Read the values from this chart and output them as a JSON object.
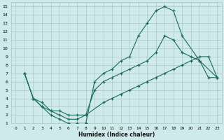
{
  "xlabel": "Humidex (Indice chaleur)",
  "bg_color": "#ceeaea",
  "grid_color": "#aac8c8",
  "line_color": "#1a6b5a",
  "xlim": [
    -0.5,
    23.5
  ],
  "ylim": [
    1,
    15.5
  ],
  "xticks": [
    0,
    1,
    2,
    3,
    4,
    5,
    6,
    7,
    8,
    9,
    10,
    11,
    12,
    13,
    14,
    15,
    16,
    17,
    18,
    19,
    20,
    21,
    22,
    23
  ],
  "yticks": [
    1,
    2,
    3,
    4,
    5,
    6,
    7,
    8,
    9,
    10,
    11,
    12,
    13,
    14,
    15
  ],
  "line1_x": [
    1,
    2,
    3,
    4,
    5,
    6,
    7,
    8,
    9,
    10,
    11,
    12,
    13,
    14,
    15,
    16,
    17,
    18,
    19,
    21,
    22,
    23
  ],
  "line1_y": [
    7,
    4,
    3,
    2,
    1.5,
    1,
    1,
    1,
    6,
    7,
    7.5,
    8.5,
    9,
    11.5,
    13,
    14.5,
    15,
    14.5,
    11.5,
    8.5,
    6.5,
    6.5
  ],
  "line2_x": [
    1,
    2,
    3,
    4,
    5,
    6,
    7,
    8,
    9,
    10,
    11,
    12,
    13,
    14,
    15,
    16,
    17,
    18,
    19,
    20,
    21,
    23
  ],
  "line2_y": [
    7,
    4,
    3,
    2.5,
    2,
    1.5,
    1.5,
    2,
    5,
    6,
    6.5,
    7,
    7.5,
    8,
    8.5,
    9.5,
    11.5,
    11,
    9.5,
    9,
    8.5,
    6.5
  ],
  "line3_x": [
    1,
    2,
    3,
    4,
    5,
    6,
    7,
    8,
    10,
    11,
    12,
    13,
    14,
    15,
    16,
    17,
    18,
    19,
    20,
    21,
    22,
    23
  ],
  "line3_y": [
    7,
    4,
    3.5,
    2.5,
    2.5,
    2,
    2,
    2,
    3.5,
    4,
    4.5,
    5,
    5.5,
    6,
    6.5,
    7,
    7.5,
    8,
    8.5,
    9,
    9,
    6.5
  ]
}
